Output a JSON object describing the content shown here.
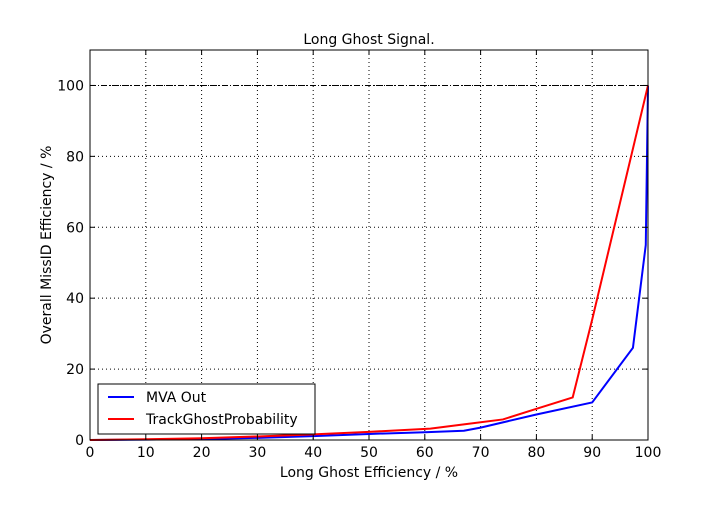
{
  "chart_data": {
    "type": "line",
    "title": "Long Ghost Signal.",
    "xlabel": "Long Ghost Efficiency / %",
    "ylabel": "Overall MissID Efficiency / %",
    "xlim": [
      0,
      100
    ],
    "ylim": [
      0,
      110
    ],
    "xticks": [
      0,
      10,
      20,
      30,
      40,
      50,
      60,
      70,
      80,
      90,
      100
    ],
    "yticks": [
      0,
      20,
      40,
      60,
      80,
      100
    ],
    "xtick_labels": [
      "0",
      "10",
      "20",
      "30",
      "40",
      "50",
      "60",
      "70",
      "80",
      "90",
      "100"
    ],
    "ytick_labels": [
      "0",
      "20",
      "40",
      "60",
      "80",
      "100"
    ],
    "grid": true,
    "reference_line_y": 100,
    "legend_position": "lower-left",
    "series": [
      {
        "name": "MVA Out",
        "color": "#0000ff",
        "x": [
          0,
          10,
          20,
          30,
          40,
          50,
          60,
          67,
          70,
          80,
          90,
          97.3,
          99.6,
          100
        ],
        "y": [
          0,
          0.1,
          0.3,
          0.6,
          1.1,
          1.7,
          2.2,
          2.6,
          3.5,
          7.2,
          10.6,
          26,
          55,
          100
        ]
      },
      {
        "name": "TrackGhostProbability",
        "color": "#ff0000",
        "x": [
          0,
          10,
          20,
          30,
          40,
          50,
          61,
          67,
          74,
          80,
          86.5,
          90,
          100
        ],
        "y": [
          0,
          0.2,
          0.5,
          1.0,
          1.6,
          2.3,
          3.2,
          4.4,
          5.8,
          8.8,
          12.0,
          34,
          100
        ]
      }
    ]
  }
}
